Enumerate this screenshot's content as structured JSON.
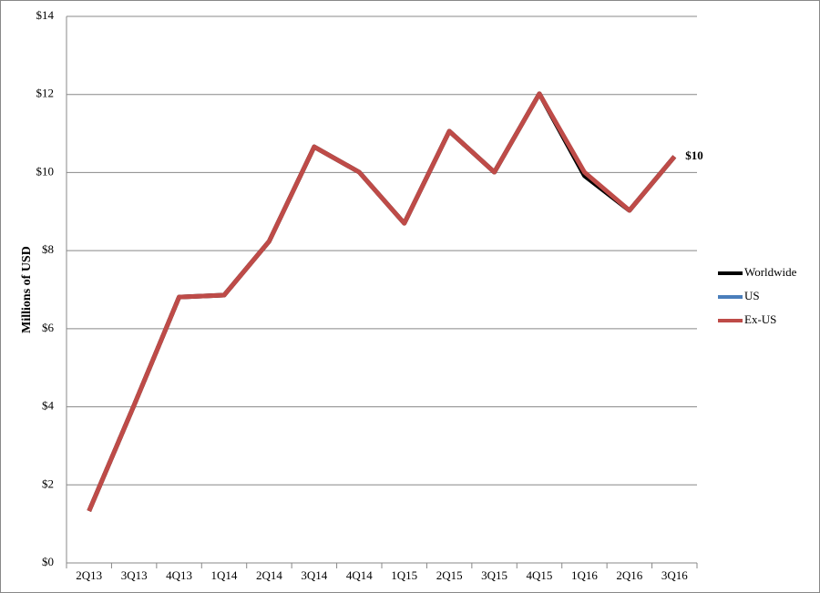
{
  "chart_data": {
    "type": "line",
    "y_label": "Millions of USD",
    "categories": [
      "2Q13",
      "3Q13",
      "4Q13",
      "1Q14",
      "2Q14",
      "3Q14",
      "4Q14",
      "1Q15",
      "2Q15",
      "3Q15",
      "4Q15",
      "1Q16",
      "2Q16",
      "3Q16"
    ],
    "series": [
      {
        "name": "Worldwide",
        "color": "#000000",
        "values": [
          1.33,
          4.04,
          6.81,
          6.86,
          8.24,
          10.66,
          10.01,
          8.7,
          11.06,
          10.01,
          12.02,
          9.92,
          9.03,
          10.41
        ]
      },
      {
        "name": "US",
        "color": "#4a7ebb",
        "values": [
          null,
          null,
          null,
          null,
          null,
          null,
          null,
          null,
          null,
          null,
          null,
          null,
          null,
          null
        ]
      },
      {
        "name": "Ex-US",
        "color": "#be4b48",
        "values": [
          1.33,
          4.04,
          6.81,
          6.86,
          8.24,
          10.66,
          10.01,
          8.7,
          11.06,
          10.01,
          12.02,
          10.01,
          9.03,
          10.41
        ],
        "value_labels": [
          null,
          null,
          null,
          null,
          null,
          null,
          null,
          null,
          null,
          null,
          null,
          null,
          null,
          "$10"
        ]
      }
    ],
    "ylim": [
      0,
      14
    ],
    "yticks": [
      {
        "value": 0,
        "label": "$0"
      },
      {
        "value": 2,
        "label": "$2"
      },
      {
        "value": 4,
        "label": "$4"
      },
      {
        "value": 6,
        "label": "$6"
      },
      {
        "value": 8,
        "label": "$8"
      },
      {
        "value": 10,
        "label": "$10"
      },
      {
        "value": 12,
        "label": "$12"
      },
      {
        "value": 14,
        "label": "$14"
      }
    ],
    "grid": true,
    "legend": "right"
  }
}
